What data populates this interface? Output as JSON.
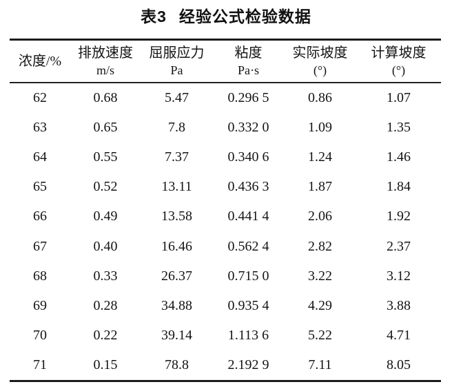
{
  "title": {
    "label": "表3",
    "text": "经验公式检验数据"
  },
  "colors": {
    "background": "#ffffff",
    "text": "#141414",
    "rule": "#1b1b1b"
  },
  "table": {
    "columns": [
      {
        "name": "浓度/%",
        "unit": ""
      },
      {
        "name": "排放速度",
        "unit": "m/s"
      },
      {
        "name": "屈服应力",
        "unit": "Pa"
      },
      {
        "name": "粘度",
        "unit": "Pa·s"
      },
      {
        "name": "实际坡度",
        "unit": "(°)"
      },
      {
        "name": "计算坡度",
        "unit": "(°)"
      }
    ],
    "rows": [
      [
        "62",
        "0.68",
        "5.47",
        "0.296 5",
        "0.86",
        "1.07"
      ],
      [
        "63",
        "0.65",
        "7.8",
        "0.332 0",
        "1.09",
        "1.35"
      ],
      [
        "64",
        "0.55",
        "7.37",
        "0.340 6",
        "1.24",
        "1.46"
      ],
      [
        "65",
        "0.52",
        "13.11",
        "0.436 3",
        "1.87",
        "1.84"
      ],
      [
        "66",
        "0.49",
        "13.58",
        "0.441 4",
        "2.06",
        "1.92"
      ],
      [
        "67",
        "0.40",
        "16.46",
        "0.562 4",
        "2.82",
        "2.37"
      ],
      [
        "68",
        "0.33",
        "26.37",
        "0.715 0",
        "3.22",
        "3.12"
      ],
      [
        "69",
        "0.28",
        "34.88",
        "0.935 4",
        "4.29",
        "3.88"
      ],
      [
        "70",
        "0.22",
        "39.14",
        "1.113 6",
        "5.22",
        "4.71"
      ],
      [
        "71",
        "0.15",
        "78.8",
        "2.192 9",
        "7.11",
        "8.05"
      ]
    ]
  },
  "chart_data": {
    "type": "table",
    "title": "表3 经验公式检验数据",
    "columns": [
      "浓度/%",
      "排放速度 m/s",
      "屈服应力 Pa",
      "粘度 Pa·s",
      "实际坡度 (°)",
      "计算坡度 (°)"
    ],
    "rows": [
      [
        62,
        0.68,
        5.47,
        0.2965,
        0.86,
        1.07
      ],
      [
        63,
        0.65,
        7.8,
        0.332,
        1.09,
        1.35
      ],
      [
        64,
        0.55,
        7.37,
        0.3406,
        1.24,
        1.46
      ],
      [
        65,
        0.52,
        13.11,
        0.4363,
        1.87,
        1.84
      ],
      [
        66,
        0.49,
        13.58,
        0.4414,
        2.06,
        1.92
      ],
      [
        67,
        0.4,
        16.46,
        0.5624,
        2.82,
        2.37
      ],
      [
        68,
        0.33,
        26.37,
        0.715,
        3.22,
        3.12
      ],
      [
        69,
        0.28,
        34.88,
        0.9354,
        4.29,
        3.88
      ],
      [
        70,
        0.22,
        39.14,
        1.1136,
        5.22,
        4.71
      ],
      [
        71,
        0.15,
        78.8,
        2.1929,
        7.11,
        8.05
      ]
    ]
  }
}
